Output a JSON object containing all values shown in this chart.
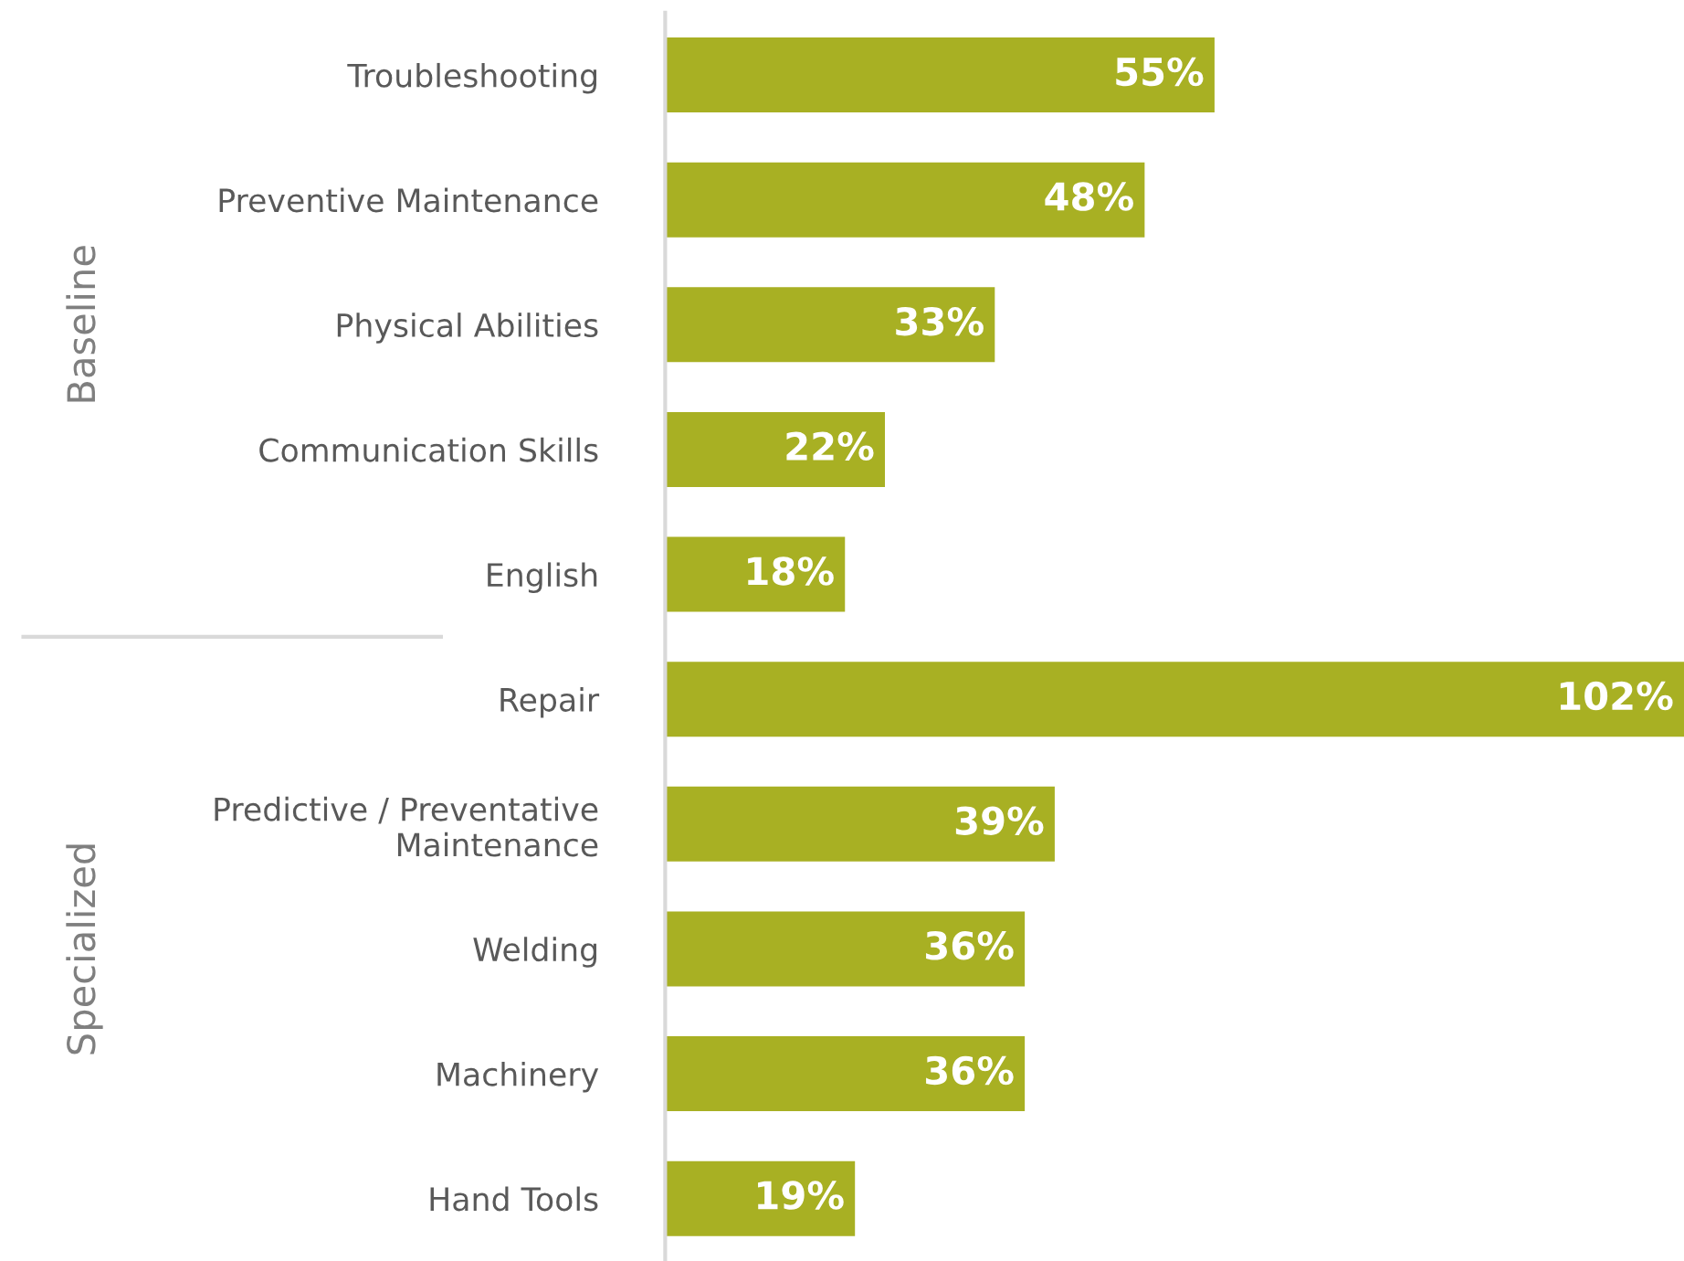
{
  "chart_data": {
    "type": "bar",
    "orientation": "horizontal",
    "value_labels": [
      "55%",
      "48%",
      "33%",
      "22%",
      "18%",
      "102%",
      "39%",
      "36%",
      "36%",
      "19%"
    ],
    "color": "#a8b023",
    "categories": [
      "Troubleshooting",
      "Preventive Maintenance",
      "Physical Abilities",
      "Communication Skills",
      "English",
      "Repair",
      "Predictive / Preventative\nMaintenance",
      "Welding",
      "Machinery",
      "Hand Tools"
    ],
    "values": [
      55,
      48,
      33,
      22,
      18,
      102,
      39,
      36,
      36,
      19
    ],
    "annotations": [
      "Baseline",
      "Specialized"
    ]
  }
}
